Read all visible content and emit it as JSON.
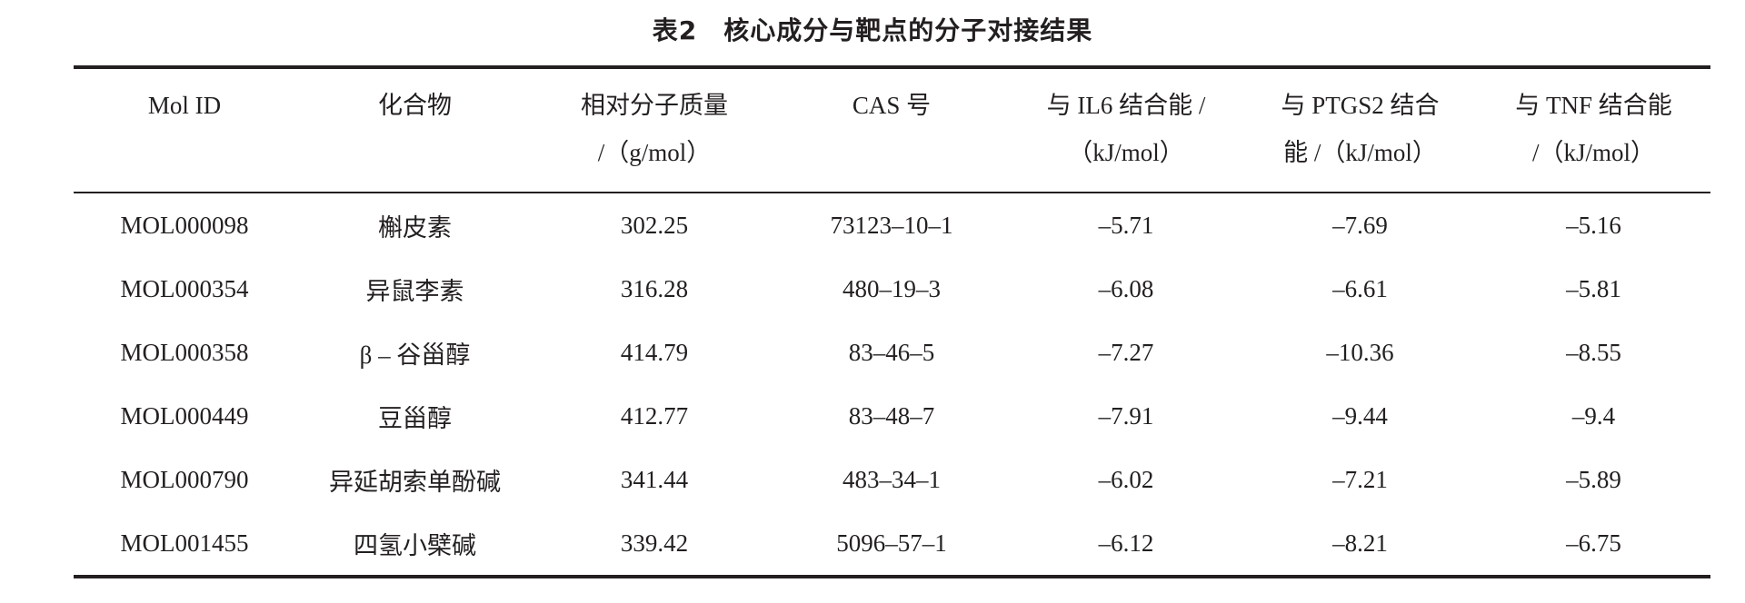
{
  "title": "表2　核心成分与靶点的分子对接结果",
  "table": {
    "headers": [
      [
        "Mol ID"
      ],
      [
        "化合物"
      ],
      [
        "相对分子质量",
        "/（g/mol）"
      ],
      [
        "CAS 号"
      ],
      [
        "与 IL6 结合能 /",
        "（kJ/mol）"
      ],
      [
        "与 PTGS2 结合",
        "能 /（kJ/mol）"
      ],
      [
        "与 TNF 结合能",
        "/（kJ/mol）"
      ]
    ],
    "rows": [
      [
        "MOL000098",
        "槲皮素",
        "302.25",
        "73123–10–1",
        "–5.71",
        "–7.69",
        "–5.16"
      ],
      [
        "MOL000354",
        "异鼠李素",
        "316.28",
        "480–19–3",
        "–6.08",
        "–6.61",
        "–5.81"
      ],
      [
        "MOL000358",
        "β – 谷甾醇",
        "414.79",
        "83–46–5",
        "–7.27",
        "–10.36",
        "–8.55"
      ],
      [
        "MOL000449",
        "豆甾醇",
        "412.77",
        "83–48–7",
        "–7.91",
        "–9.44",
        "–9.4"
      ],
      [
        "MOL000790",
        "异延胡索单酚碱",
        "341.44",
        "483–34–1",
        "–6.02",
        "–7.21",
        "–5.89"
      ],
      [
        "MOL001455",
        "四氢小檗碱",
        "339.42",
        "5096–57–1",
        "–6.12",
        "–8.21",
        "–6.75"
      ]
    ]
  }
}
